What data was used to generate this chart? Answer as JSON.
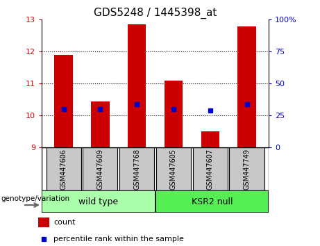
{
  "title": "GDS5248 / 1445398_at",
  "samples": [
    "GSM447606",
    "GSM447609",
    "GSM447768",
    "GSM447605",
    "GSM447607",
    "GSM447749"
  ],
  "bar_bottoms": [
    9,
    9,
    9,
    9,
    9,
    9
  ],
  "bar_tops": [
    11.9,
    10.45,
    12.85,
    11.1,
    9.5,
    12.8
  ],
  "percentile_values": [
    10.2,
    10.2,
    10.35,
    10.2,
    10.15,
    10.35
  ],
  "ylim": [
    9,
    13
  ],
  "right_ylim": [
    0,
    100
  ],
  "right_yticks": [
    0,
    25,
    50,
    75,
    100
  ],
  "left_yticks": [
    9,
    10,
    11,
    12,
    13
  ],
  "bar_color": "#cc0000",
  "percentile_color": "#0000cc",
  "left_tick_color": "#cc0000",
  "right_tick_color": "#0000cc",
  "group_label": "genotype/variation",
  "legend_count_label": "count",
  "legend_percentile_label": "percentile rank within the sample",
  "sample_box_color": "#c8c8c8",
  "wild_type_color": "#aaffaa",
  "ksr2_color": "#55ee55",
  "wild_type_label": "wild type",
  "ksr2_label": "KSR2 null",
  "bar_width": 0.5
}
